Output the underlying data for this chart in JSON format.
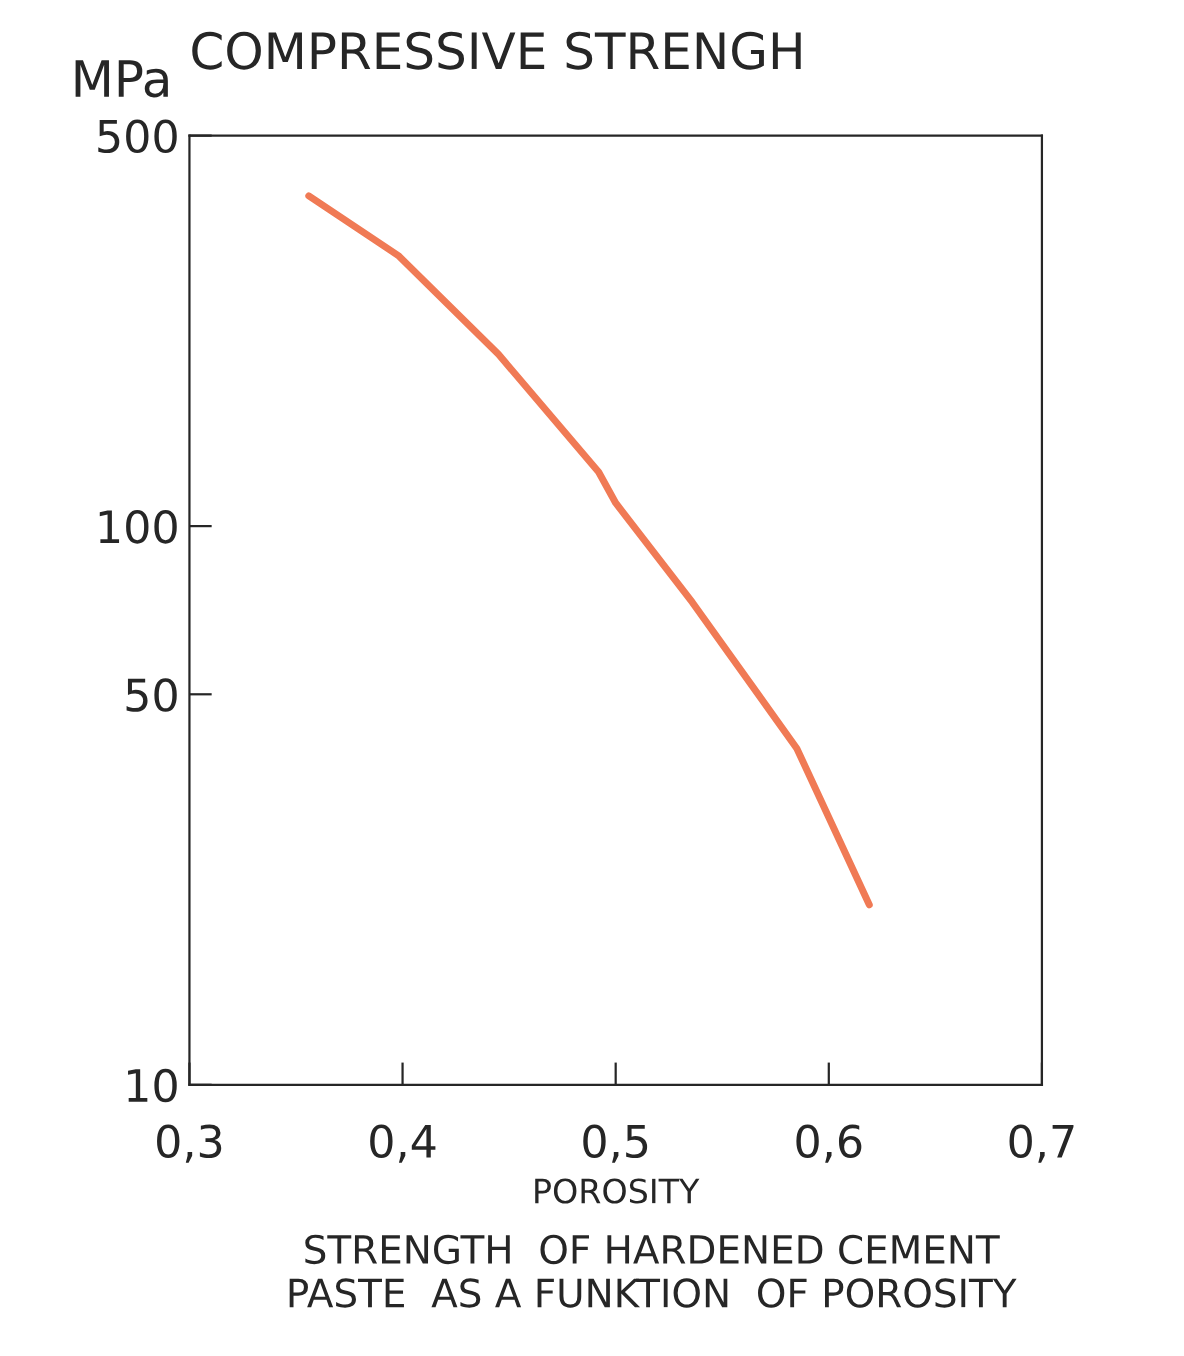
{
  "chart_data": {
    "type": "line",
    "title": "COMPRESSIVE STRENGH",
    "ylabel": "MPa",
    "xlabel": "POROSITY",
    "annotations": [
      "STRENGTH  OF HARDENED CEMENT\nPASTE  AS A FUNKTION  OF POROSITY"
    ],
    "log": "y",
    "grid": false,
    "marker": "none",
    "line_style": "solid",
    "x": [
      0.356,
      0.398,
      0.445,
      0.492,
      0.5,
      0.536,
      0.585,
      0.619
    ],
    "series": [
      {
        "color": "#f07a55",
        "values": [
          390,
          305,
          203,
          125,
          110,
          73,
          40,
          21
        ]
      }
    ],
    "xlim": [
      0.3,
      0.7
    ],
    "ylim": [
      10,
      500
    ],
    "xticks": [
      {
        "value": 0.3,
        "label": "0,3"
      },
      {
        "value": 0.4,
        "label": "0,4"
      },
      {
        "value": 0.5,
        "label": "0,5"
      },
      {
        "value": 0.6,
        "label": "0,6"
      },
      {
        "value": 0.7,
        "label": "0,7"
      }
    ],
    "yticks": [
      10,
      50,
      100,
      500
    ]
  }
}
